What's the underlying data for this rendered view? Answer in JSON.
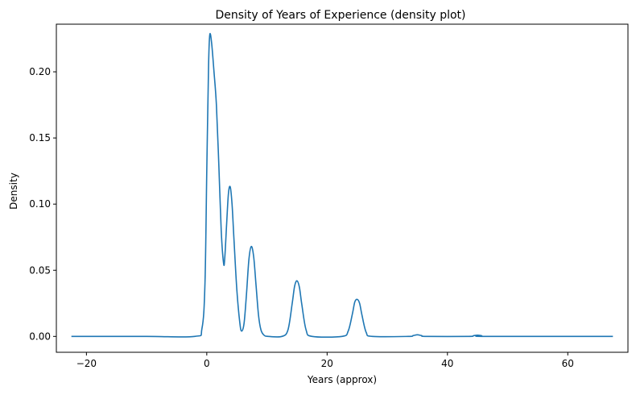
{
  "chart_data": {
    "type": "line",
    "title": "Density of Years of Experience (density plot)",
    "xlabel": "Years (approx)",
    "ylabel": "Density",
    "xlim": [
      -25,
      70
    ],
    "ylim": [
      -0.012,
      0.236
    ],
    "xticks": [
      -20,
      0,
      20,
      40,
      60
    ],
    "xtick_labels": [
      "−20",
      "0",
      "20",
      "40",
      "60"
    ],
    "yticks": [
      0.0,
      0.05,
      0.1,
      0.15,
      0.2
    ],
    "ytick_labels": [
      "0.00",
      "0.05",
      "0.10",
      "0.15",
      "0.20"
    ],
    "grid": false,
    "legend": "none",
    "colors": {
      "line": "#1f77b4",
      "axes": "#000000",
      "background": "#ffffff"
    },
    "series": [
      {
        "x": [
          -22.5,
          -10,
          -2,
          -0.8,
          -0.3,
          0,
          0.3,
          0.5,
          0.8,
          1.2,
          1.6,
          2.0,
          2.4,
          2.8,
          3.0,
          3.3,
          3.6,
          3.9,
          4.2,
          4.5,
          5.0,
          5.5,
          5.8,
          6.2,
          6.6,
          7.0,
          7.4,
          7.8,
          8.2,
          8.6,
          9.0,
          9.5,
          10.2,
          12.5,
          13.5,
          14.2,
          14.6,
          15.0,
          15.4,
          15.8,
          16.5,
          17.5,
          22.5,
          23.5,
          24.2,
          24.6,
          25.0,
          25.4,
          25.8,
          26.5,
          27.5,
          33.5,
          34.3,
          35.0,
          35.7,
          36.5,
          43.5,
          44.3,
          45.0,
          45.7,
          46.5,
          67.5
        ],
        "y": [
          0.0,
          0.0,
          0.0,
          0.006,
          0.04,
          0.125,
          0.205,
          0.228,
          0.222,
          0.2,
          0.175,
          0.13,
          0.08,
          0.055,
          0.06,
          0.085,
          0.108,
          0.113,
          0.1,
          0.075,
          0.035,
          0.01,
          0.004,
          0.01,
          0.032,
          0.058,
          0.068,
          0.06,
          0.038,
          0.016,
          0.005,
          0.001,
          0.0,
          0.0,
          0.005,
          0.025,
          0.038,
          0.042,
          0.037,
          0.024,
          0.005,
          0.0,
          0.0,
          0.004,
          0.017,
          0.026,
          0.028,
          0.025,
          0.016,
          0.003,
          0.0,
          0.0,
          0.0006,
          0.0012,
          0.0006,
          0.0,
          0.0,
          0.0005,
          0.0009,
          0.0005,
          0.0,
          0.0
        ]
      }
    ]
  }
}
